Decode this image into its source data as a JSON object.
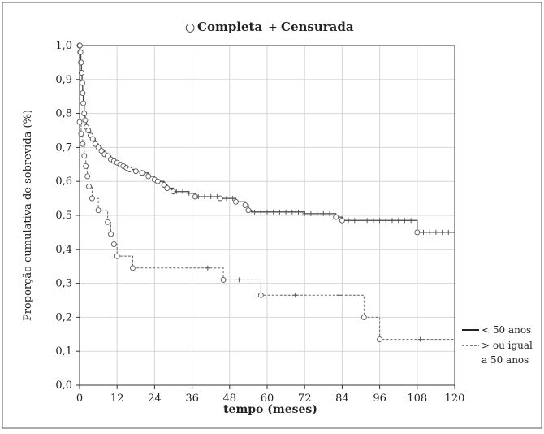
{
  "chart_data": {
    "type": "line",
    "xlabel": "tempo (meses)",
    "ylabel": "Proporção cumulativa de sobrevida (%)",
    "xlim": [
      0,
      120
    ],
    "ylim": [
      0,
      1
    ],
    "x_ticks": [
      0,
      12,
      24,
      36,
      48,
      60,
      72,
      84,
      96,
      108,
      120
    ],
    "y_ticks": [
      0.0,
      0.1,
      0.2,
      0.3,
      0.4,
      0.5,
      0.6,
      0.7,
      0.8,
      0.9,
      1.0
    ],
    "x_tick_labels": [
      "0",
      "12",
      "24",
      "36",
      "48",
      "60",
      "72",
      "84",
      "96",
      "108",
      "120"
    ],
    "y_tick_labels": [
      "0,0",
      "0,1",
      "0,2",
      "0,3",
      "0,4",
      "0,5",
      "0,6",
      "0,7",
      "0,8",
      "0,9",
      "1,0"
    ],
    "grid": true,
    "top_legend": {
      "complete_symbol": "○",
      "complete_label": "Completa",
      "censored_symbol": "+",
      "censored_label": "Censurada"
    },
    "series": [
      {
        "name": "< 50 anos",
        "line_style": "solid",
        "color": "#444444",
        "steps": [
          [
            0,
            1.0
          ],
          [
            0.2,
            0.98
          ],
          [
            0.4,
            0.95
          ],
          [
            0.6,
            0.92
          ],
          [
            0.8,
            0.89
          ],
          [
            1.0,
            0.86
          ],
          [
            1.2,
            0.83
          ],
          [
            1.5,
            0.8
          ],
          [
            1.8,
            0.78
          ],
          [
            2.2,
            0.76
          ],
          [
            2.8,
            0.75
          ],
          [
            3.5,
            0.735
          ],
          [
            4.2,
            0.725
          ],
          [
            5.0,
            0.71
          ],
          [
            6.0,
            0.7
          ],
          [
            7.0,
            0.69
          ],
          [
            8.0,
            0.68
          ],
          [
            9.0,
            0.675
          ],
          [
            10,
            0.665
          ],
          [
            11,
            0.66
          ],
          [
            12,
            0.655
          ],
          [
            13,
            0.65
          ],
          [
            14,
            0.645
          ],
          [
            15,
            0.64
          ],
          [
            16,
            0.635
          ],
          [
            18,
            0.63
          ],
          [
            20,
            0.625
          ],
          [
            22,
            0.615
          ],
          [
            24,
            0.605
          ],
          [
            25,
            0.6
          ],
          [
            27,
            0.59
          ],
          [
            28,
            0.58
          ],
          [
            30,
            0.57
          ],
          [
            35,
            0.565
          ],
          [
            37,
            0.555
          ],
          [
            45,
            0.55
          ],
          [
            50,
            0.54
          ],
          [
            53,
            0.53
          ],
          [
            54,
            0.515
          ],
          [
            55,
            0.51
          ],
          [
            72,
            0.505
          ],
          [
            82,
            0.495
          ],
          [
            84,
            0.485
          ],
          [
            108,
            0.45
          ],
          [
            120,
            0.45
          ]
        ],
        "events": [
          0,
          0.1,
          0.2,
          0.3,
          0.4,
          0.5,
          0.6,
          0.7,
          0.8,
          0.9,
          1.0,
          1.2,
          1.5,
          1.8,
          2.2,
          2.8,
          3.5,
          4.2,
          5,
          6,
          7,
          8,
          9,
          10,
          11,
          12,
          13,
          14,
          15,
          16,
          18,
          20,
          22,
          24,
          25,
          27,
          28,
          30,
          37,
          45,
          50,
          53,
          54,
          82,
          84,
          108
        ],
        "censored": [
          31,
          33,
          35,
          38,
          40,
          42,
          44,
          47,
          49,
          56,
          58,
          60,
          62,
          64,
          66,
          68,
          70,
          72,
          74,
          76,
          78,
          80,
          86,
          88,
          90,
          92,
          94,
          96,
          98,
          100,
          102,
          104,
          106,
          110,
          112,
          114,
          116,
          118
        ]
      },
      {
        "name": "> ou igual a 50 anos",
        "line_style": "dashed",
        "color": "#666666",
        "steps": [
          [
            0,
            0.775
          ],
          [
            0.5,
            0.74
          ],
          [
            1.0,
            0.71
          ],
          [
            1.5,
            0.675
          ],
          [
            2.0,
            0.645
          ],
          [
            2.5,
            0.615
          ],
          [
            3.0,
            0.585
          ],
          [
            4.0,
            0.55
          ],
          [
            6.0,
            0.515
          ],
          [
            9.0,
            0.48
          ],
          [
            10,
            0.445
          ],
          [
            11,
            0.415
          ],
          [
            12,
            0.38
          ],
          [
            17,
            0.345
          ],
          [
            46,
            0.31
          ],
          [
            58,
            0.265
          ],
          [
            91,
            0.2
          ],
          [
            96,
            0.135
          ],
          [
            120,
            0.135
          ]
        ],
        "events": [
          0,
          0.5,
          1.0,
          1.5,
          2.0,
          2.5,
          3.0,
          4.0,
          6.0,
          9.0,
          10,
          11,
          12,
          17,
          46,
          58,
          91,
          96
        ],
        "censored": [
          41,
          51,
          69,
          83,
          109
        ]
      }
    ]
  }
}
